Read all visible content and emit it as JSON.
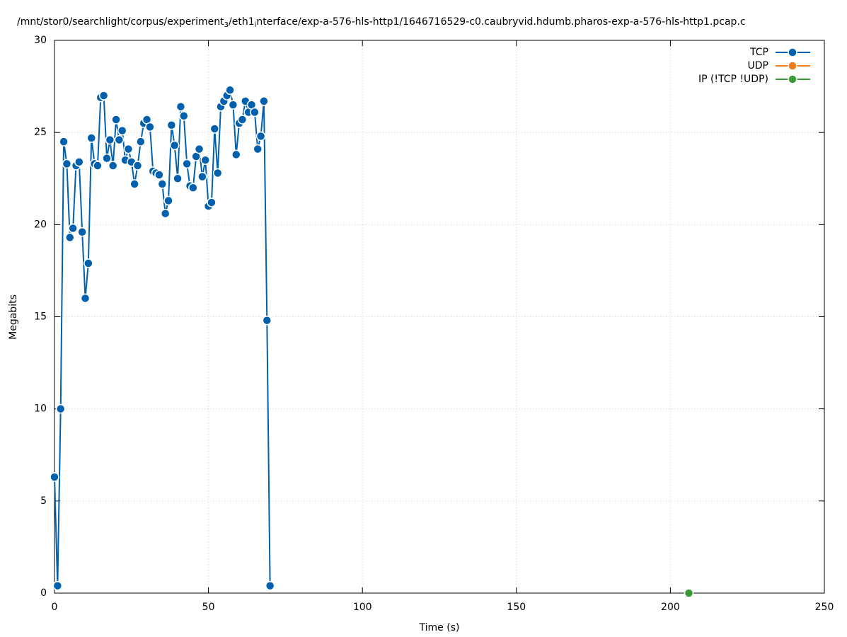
{
  "chart_data": {
    "type": "line",
    "title_parts": [
      "/mnt/stor0/searchlight/corpus/experiment",
      "3",
      "/eth1",
      "i",
      "nterface/exp-a-576-hls-http1/1646716529-c0.caubryvid.hdumb.pharos-exp-a-576-hls-http1.pcap.c"
    ],
    "xlabel": "Time (s)",
    "ylabel": "Megabits",
    "xlim": [
      0,
      250
    ],
    "xticks": [
      0,
      50,
      100,
      150,
      200,
      250
    ],
    "ylim": [
      0,
      30
    ],
    "yticks": [
      0,
      5,
      10,
      15,
      20,
      25,
      30
    ],
    "grid": true,
    "legend": "top-right",
    "series": [
      {
        "name": "TCP",
        "color": "#0060ad",
        "x": [
          0,
          1,
          2,
          3,
          4,
          5,
          6,
          7,
          8,
          9,
          10,
          11,
          12,
          13,
          14,
          15,
          16,
          17,
          18,
          19,
          20,
          21,
          22,
          23,
          24,
          25,
          26,
          27,
          28,
          29,
          30,
          31,
          32,
          33,
          34,
          35,
          36,
          37,
          38,
          39,
          40,
          41,
          42,
          43,
          44,
          45,
          46,
          47,
          48,
          49,
          50,
          51,
          52,
          53,
          54,
          55,
          56,
          57,
          58,
          59,
          60,
          61,
          62,
          63,
          64,
          65,
          66,
          67,
          68,
          69,
          70
        ],
        "values": [
          6.3,
          0.4,
          10,
          24.5,
          23.3,
          19.3,
          19.8,
          23.2,
          23.4,
          19.6,
          16,
          17.9,
          24.7,
          23.3,
          23.2,
          26.9,
          27,
          23.6,
          24.6,
          23.2,
          25.7,
          24.6,
          25.1,
          23.5,
          24.1,
          23.4,
          22.2,
          23.2,
          24.5,
          25.5,
          25.7,
          25.3,
          22.9,
          22.8,
          22.7,
          22.2,
          20.6,
          21.3,
          25.4,
          24.3,
          22.5,
          26.4,
          25.9,
          23.3,
          22.1,
          22,
          23.7,
          24.1,
          22.6,
          23.5,
          21,
          21.2,
          25.2,
          22.8,
          26.4,
          26.7,
          27,
          27.3,
          26.5,
          23.8,
          25.5,
          25.7,
          26.7,
          26.1,
          26.5,
          26.1,
          24.1,
          24.8,
          26.7,
          14.8,
          0.4
        ]
      },
      {
        "name": "UDP",
        "color": "#f07c1b",
        "x": [],
        "values": []
      },
      {
        "name": "IP (!TCP  !UDP)",
        "color": "#3a9a37",
        "x": [
          206
        ],
        "values": [
          0
        ]
      }
    ]
  }
}
